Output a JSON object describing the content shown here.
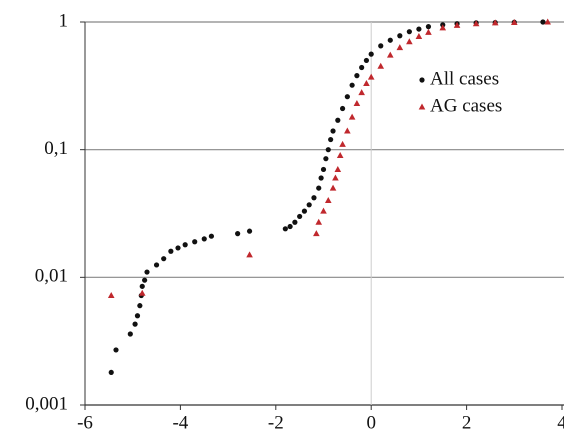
{
  "chart_data": {
    "type": "scatter",
    "log_y": true,
    "xlim": [
      -6,
      4
    ],
    "xticks": [
      -6,
      -4,
      -2,
      0,
      2,
      4
    ],
    "ylim": [
      0.001,
      1
    ],
    "yticks": [
      {
        "value": 0.001,
        "label": "0,001"
      },
      {
        "value": 0.01,
        "label": "0,01"
      },
      {
        "value": 0.1,
        "label": "0,1"
      },
      1
    ],
    "grid": true,
    "legend": "upper right",
    "series": [
      {
        "name": "All cases",
        "color": "#111111",
        "marker": "circle",
        "x": [
          -5.45,
          -5.35,
          -5.05,
          -4.95,
          -4.9,
          -4.85,
          -4.82,
          -4.8,
          -4.75,
          -4.7,
          -4.5,
          -4.35,
          -4.2,
          -4.05,
          -3.9,
          -3.7,
          -3.5,
          -3.35,
          -2.8,
          -2.55,
          -1.8,
          -1.7,
          -1.6,
          -1.5,
          -1.4,
          -1.3,
          -1.2,
          -1.1,
          -1.05,
          -1.0,
          -0.95,
          -0.9,
          -0.85,
          -0.8,
          -0.7,
          -0.6,
          -0.5,
          -0.4,
          -0.3,
          -0.2,
          -0.1,
          0,
          0.2,
          0.4,
          0.6,
          0.8,
          1.0,
          1.2,
          1.5,
          1.8,
          2.2,
          2.6,
          3.0,
          3.6
        ],
        "values": [
          0.0018,
          0.0027,
          0.0036,
          0.0043,
          0.005,
          0.006,
          0.0072,
          0.0085,
          0.0095,
          0.011,
          0.0125,
          0.014,
          0.016,
          0.017,
          0.018,
          0.019,
          0.02,
          0.021,
          0.022,
          0.023,
          0.024,
          0.025,
          0.027,
          0.03,
          0.033,
          0.037,
          0.042,
          0.05,
          0.06,
          0.07,
          0.085,
          0.1,
          0.12,
          0.14,
          0.17,
          0.21,
          0.26,
          0.32,
          0.38,
          0.44,
          0.5,
          0.56,
          0.65,
          0.72,
          0.78,
          0.84,
          0.88,
          0.92,
          0.95,
          0.97,
          0.985,
          0.99,
          0.995,
          1
        ]
      },
      {
        "name": "AG cases",
        "color": "#c0282d",
        "marker": "triangle",
        "x": [
          -5.45,
          -4.8,
          -2.55,
          -1.15,
          -1.1,
          -1.0,
          -0.9,
          -0.8,
          -0.75,
          -0.7,
          -0.65,
          -0.6,
          -0.5,
          -0.4,
          -0.3,
          -0.2,
          -0.1,
          0,
          0.2,
          0.4,
          0.6,
          0.8,
          1.0,
          1.2,
          1.5,
          1.8,
          2.2,
          2.6,
          3.0,
          3.7
        ],
        "values": [
          0.0072,
          0.0075,
          0.015,
          0.022,
          0.027,
          0.033,
          0.04,
          0.05,
          0.06,
          0.07,
          0.09,
          0.11,
          0.14,
          0.18,
          0.23,
          0.28,
          0.33,
          0.37,
          0.45,
          0.55,
          0.63,
          0.7,
          0.77,
          0.83,
          0.9,
          0.94,
          0.97,
          0.985,
          0.99,
          1
        ]
      }
    ]
  }
}
